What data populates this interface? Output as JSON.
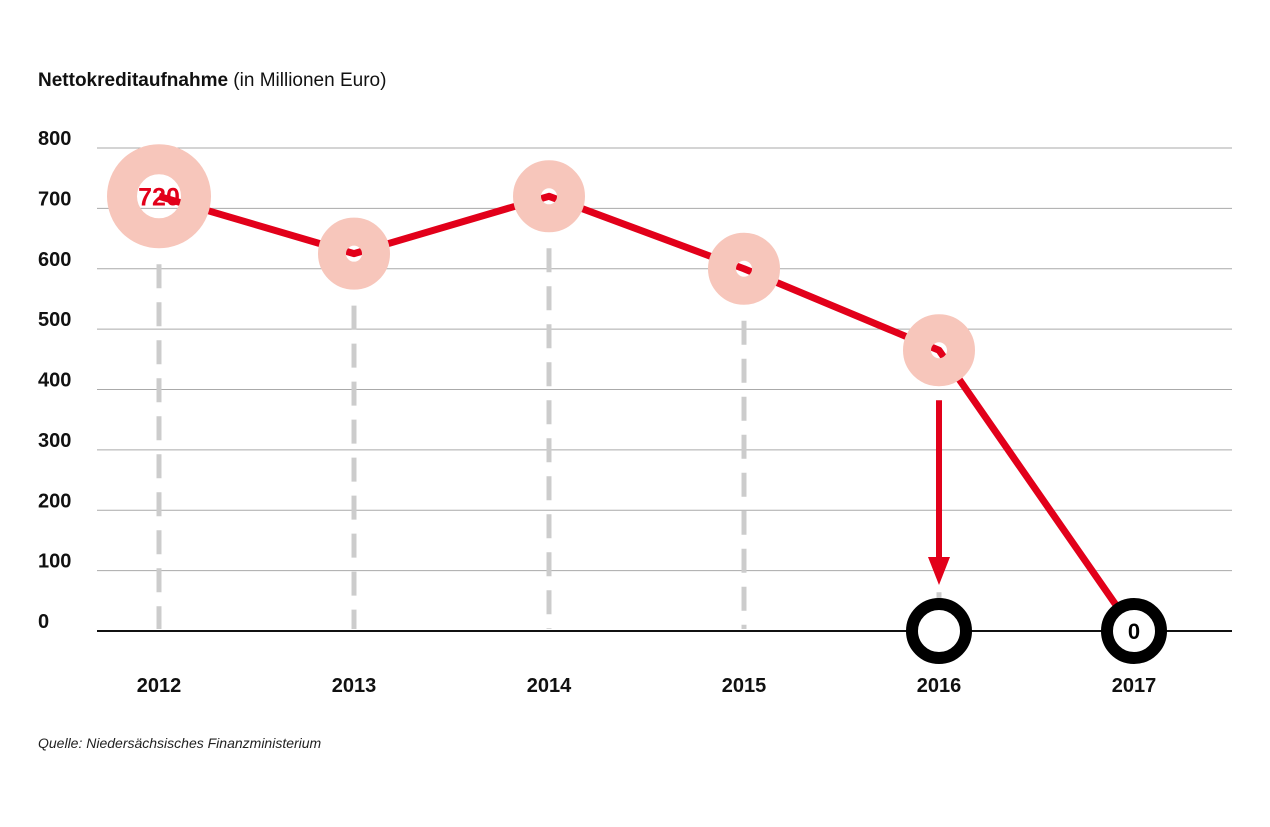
{
  "title": {
    "bold": "Nettokreditaufnahme",
    "light": " (in Millionen Euro)"
  },
  "source": "Quelle: Niedersächsisches Finanzministerium",
  "colors": {
    "line": "#e2001a",
    "marker": "#f7c6bb",
    "zero_marker": "#000000",
    "grid": "#aaaaaa",
    "guide": "#cccccc"
  },
  "chart_data": {
    "type": "line",
    "ylim": [
      0,
      800
    ],
    "yticks": [
      "0",
      "100",
      "200",
      "300",
      "400",
      "500",
      "600",
      "700",
      "800"
    ],
    "categories": [
      "2012",
      "2013",
      "2014",
      "2015",
      "2016",
      "2017"
    ],
    "values": [
      720,
      625,
      720,
      600,
      465,
      0
    ],
    "planned_2016": 0,
    "data_labels": {
      "2012": "720",
      "2017": "0"
    },
    "grid": true
  }
}
